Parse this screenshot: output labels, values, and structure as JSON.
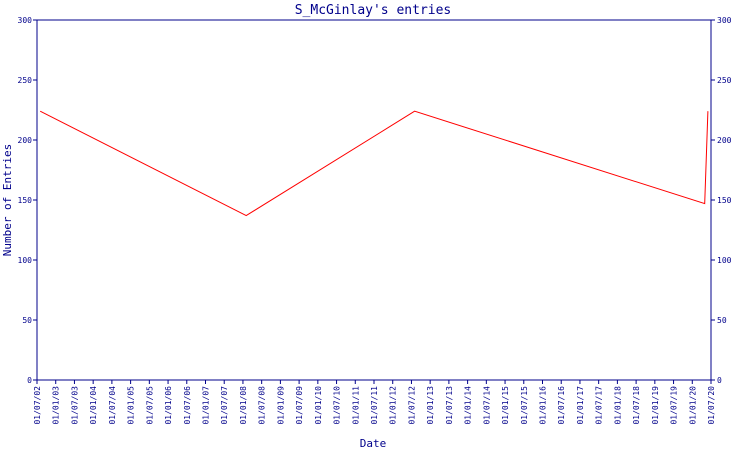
{
  "chart_data": {
    "type": "line",
    "title": "S_McGinlay's entries",
    "xlabel": "Date",
    "ylabel": "Number of Entries",
    "ylim": [
      0,
      300
    ],
    "yticks": [
      0,
      50,
      100,
      150,
      200,
      250,
      300
    ],
    "y_axis_right": true,
    "grid": false,
    "x_tick_labels": [
      "01/07/02",
      "01/01/03",
      "01/07/03",
      "01/01/04",
      "01/07/04",
      "01/01/05",
      "01/07/05",
      "01/01/06",
      "01/07/06",
      "01/01/07",
      "01/07/07",
      "01/01/08",
      "01/07/08",
      "01/01/09",
      "01/07/09",
      "01/01/10",
      "01/07/10",
      "01/01/11",
      "01/07/11",
      "01/01/12",
      "01/07/12",
      "01/01/13",
      "01/07/13",
      "01/01/14",
      "01/07/14",
      "01/01/15",
      "01/07/15",
      "01/01/16",
      "01/07/16",
      "01/01/17",
      "01/07/17",
      "01/01/18",
      "01/07/18",
      "01/01/19",
      "01/07/19",
      "01/01/20",
      "01/07/20"
    ],
    "x_range": [
      "2002-07-01",
      "2020-07-01"
    ],
    "series": [
      {
        "color": "#ff0000",
        "x": [
          "2002-08-01",
          "2008-02-01",
          "2012-08-01",
          "2020-05-01",
          "2020-06-01"
        ],
        "y": [
          224,
          137,
          224,
          147,
          224
        ]
      }
    ],
    "colors": {
      "axis": "#00008b",
      "line": "#ff0000",
      "background": "#ffffff"
    }
  }
}
